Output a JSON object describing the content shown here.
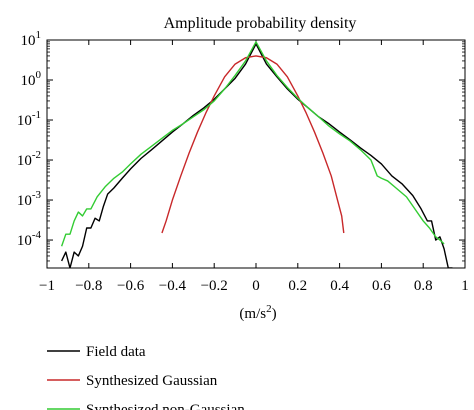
{
  "chart_data": {
    "type": "line",
    "title": "Amplitude probability density",
    "xlabel_base": "(m/s",
    "xlabel_sup": "2",
    "xlabel_end": ")",
    "ylabel": "",
    "xlim": [
      -1,
      1
    ],
    "ylim": [
      2e-05,
      10
    ],
    "yscale": "log",
    "grid": false,
    "legend_placement": "below",
    "x_ticks": [
      -1,
      -0.8,
      -0.6,
      -0.4,
      -0.2,
      0,
      0.2,
      0.4,
      0.6,
      0.8,
      1
    ],
    "x_tick_labels": [
      "−1",
      "−0.8",
      "−0.6",
      "−0.4",
      "−0.2",
      "0",
      "0.2",
      "0.4",
      "0.6",
      "0.8",
      "1"
    ],
    "y_ticks": [
      0.0001,
      0.001,
      0.01,
      0.1,
      1,
      10
    ],
    "y_tick_labels": [
      {
        "base": "10",
        "exp": "-4"
      },
      {
        "base": "10",
        "exp": "-3"
      },
      {
        "base": "10",
        "exp": "-2"
      },
      {
        "base": "10",
        "exp": "-1"
      },
      {
        "base": "10",
        "exp": "0"
      },
      {
        "base": "10",
        "exp": "1"
      }
    ],
    "series": [
      {
        "name": "Field data",
        "color": "#000000",
        "points": [
          [
            -0.93,
            3e-05
          ],
          [
            -0.91,
            5e-05
          ],
          [
            -0.89,
            2e-05
          ],
          [
            -0.87,
            5e-05
          ],
          [
            -0.85,
            4e-05
          ],
          [
            -0.83,
            7e-05
          ],
          [
            -0.81,
            0.0002
          ],
          [
            -0.79,
            0.0002
          ],
          [
            -0.77,
            0.00035
          ],
          [
            -0.75,
            0.0003
          ],
          [
            -0.73,
            0.0007
          ],
          [
            -0.71,
            0.0014
          ],
          [
            -0.68,
            0.002
          ],
          [
            -0.64,
            0.0035
          ],
          [
            -0.6,
            0.006
          ],
          [
            -0.55,
            0.011
          ],
          [
            -0.5,
            0.018
          ],
          [
            -0.45,
            0.03
          ],
          [
            -0.4,
            0.05
          ],
          [
            -0.35,
            0.08
          ],
          [
            -0.3,
            0.13
          ],
          [
            -0.25,
            0.2
          ],
          [
            -0.2,
            0.33
          ],
          [
            -0.15,
            0.6
          ],
          [
            -0.1,
            1.1
          ],
          [
            -0.05,
            2.5
          ],
          [
            0,
            8
          ],
          [
            0.05,
            2.5
          ],
          [
            0.1,
            1.2
          ],
          [
            0.15,
            0.6
          ],
          [
            0.2,
            0.33
          ],
          [
            0.25,
            0.2
          ],
          [
            0.3,
            0.12
          ],
          [
            0.35,
            0.08
          ],
          [
            0.4,
            0.05
          ],
          [
            0.45,
            0.032
          ],
          [
            0.5,
            0.02
          ],
          [
            0.55,
            0.013
          ],
          [
            0.6,
            0.008
          ],
          [
            0.65,
            0.004
          ],
          [
            0.7,
            0.0025
          ],
          [
            0.75,
            0.0013
          ],
          [
            0.79,
            0.0006
          ],
          [
            0.82,
            0.0003
          ],
          [
            0.84,
            0.0003
          ],
          [
            0.86,
            0.0001
          ],
          [
            0.88,
            0.00012
          ],
          [
            0.9,
            6e-05
          ],
          [
            0.92,
            2e-05
          ],
          [
            0.94,
            2e-05
          ]
        ]
      },
      {
        "name": "Synthesized Gaussian",
        "color": "#c8282a",
        "points": [
          [
            -0.45,
            0.00015
          ],
          [
            -0.43,
            0.0003
          ],
          [
            -0.4,
            0.001
          ],
          [
            -0.36,
            0.004
          ],
          [
            -0.32,
            0.015
          ],
          [
            -0.28,
            0.05
          ],
          [
            -0.24,
            0.15
          ],
          [
            -0.2,
            0.4
          ],
          [
            -0.15,
            1.2
          ],
          [
            -0.1,
            2.5
          ],
          [
            -0.05,
            3.6
          ],
          [
            0,
            4
          ],
          [
            0.05,
            3.6
          ],
          [
            0.1,
            2.5
          ],
          [
            0.15,
            1.2
          ],
          [
            0.2,
            0.4
          ],
          [
            0.24,
            0.15
          ],
          [
            0.28,
            0.05
          ],
          [
            0.32,
            0.015
          ],
          [
            0.36,
            0.004
          ],
          [
            0.39,
            0.001
          ],
          [
            0.41,
            0.0004
          ],
          [
            0.42,
            0.00015
          ]
        ]
      },
      {
        "name": "Synthesized non-Gaussian",
        "color": "#33cc33",
        "points": [
          [
            -0.93,
            7e-05
          ],
          [
            -0.91,
            0.00014
          ],
          [
            -0.89,
            0.00014
          ],
          [
            -0.87,
            0.0003
          ],
          [
            -0.85,
            0.0005
          ],
          [
            -0.83,
            0.0004
          ],
          [
            -0.81,
            0.0006
          ],
          [
            -0.79,
            0.0006
          ],
          [
            -0.76,
            0.0012
          ],
          [
            -0.72,
            0.0022
          ],
          [
            -0.68,
            0.0035
          ],
          [
            -0.64,
            0.005
          ],
          [
            -0.6,
            0.008
          ],
          [
            -0.55,
            0.014
          ],
          [
            -0.5,
            0.022
          ],
          [
            -0.45,
            0.035
          ],
          [
            -0.4,
            0.055
          ],
          [
            -0.35,
            0.08
          ],
          [
            -0.3,
            0.12
          ],
          [
            -0.25,
            0.18
          ],
          [
            -0.2,
            0.3
          ],
          [
            -0.15,
            0.6
          ],
          [
            -0.1,
            1.3
          ],
          [
            -0.05,
            3
          ],
          [
            0,
            9
          ],
          [
            0.05,
            3
          ],
          [
            0.1,
            1.3
          ],
          [
            0.15,
            0.65
          ],
          [
            0.2,
            0.35
          ],
          [
            0.25,
            0.2
          ],
          [
            0.3,
            0.12
          ],
          [
            0.35,
            0.07
          ],
          [
            0.4,
            0.045
          ],
          [
            0.45,
            0.03
          ],
          [
            0.5,
            0.018
          ],
          [
            0.55,
            0.01
          ],
          [
            0.58,
            0.004
          ],
          [
            0.6,
            0.0035
          ],
          [
            0.63,
            0.003
          ],
          [
            0.67,
            0.002
          ],
          [
            0.72,
            0.0012
          ],
          [
            0.76,
            0.0006
          ],
          [
            0.8,
            0.0003
          ],
          [
            0.83,
            0.0002
          ],
          [
            0.86,
            0.00012
          ],
          [
            0.88,
            0.0001
          ],
          [
            0.9,
            8e-05
          ]
        ]
      }
    ]
  }
}
